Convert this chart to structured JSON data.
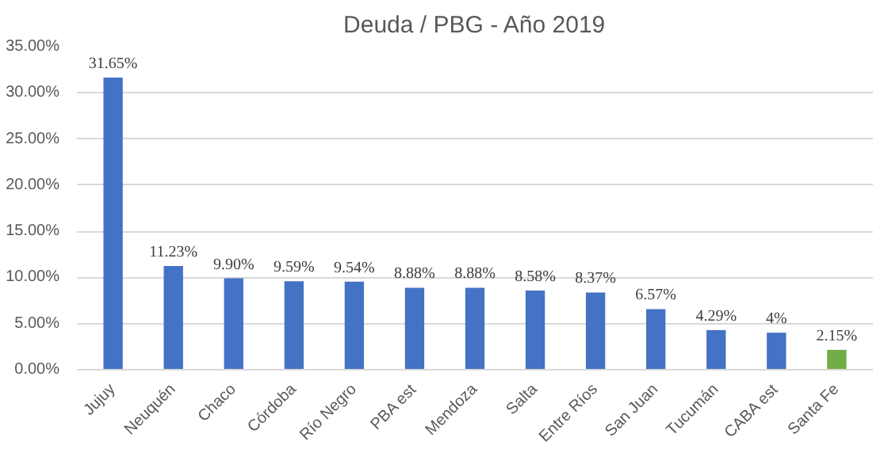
{
  "chart_data": {
    "type": "bar",
    "title": "Deuda / PBG - Año 2019",
    "categories": [
      "Jujuy",
      "Neuquén",
      "Chaco",
      "Córdoba",
      "Río Negro",
      "PBA est",
      "Mendoza",
      "Salta",
      "Entre Ríos",
      "San Juan",
      "Tucumán",
      "CABA est",
      "Santa Fe"
    ],
    "values": [
      31.65,
      11.23,
      9.9,
      9.59,
      9.54,
      8.88,
      8.88,
      8.58,
      8.37,
      6.57,
      4.29,
      4,
      2.15
    ],
    "value_labels": [
      "31.65%",
      "11.23%",
      "9.90%",
      "9.59%",
      "9.54%",
      "8.88%",
      "8.88%",
      "8.58%",
      "8.37%",
      "6.57%",
      "4.29%",
      "4%",
      "2.15%"
    ],
    "colors": [
      "#4472c4",
      "#4472c4",
      "#4472c4",
      "#4472c4",
      "#4472c4",
      "#4472c4",
      "#4472c4",
      "#4472c4",
      "#4472c4",
      "#4472c4",
      "#4472c4",
      "#4472c4",
      "#70ad47"
    ],
    "ylim": [
      0,
      35
    ],
    "yticks": [
      {
        "value": 0,
        "label": "0.00%"
      },
      {
        "value": 5,
        "label": "5.00%"
      },
      {
        "value": 10,
        "label": "10.00%"
      },
      {
        "value": 15,
        "label": "15.00%"
      },
      {
        "value": 20,
        "label": "20.00%"
      },
      {
        "value": 25,
        "label": "25.00%"
      },
      {
        "value": 30,
        "label": "30.00%"
      },
      {
        "value": 35,
        "label": "35.00%"
      }
    ],
    "grid": "y"
  }
}
